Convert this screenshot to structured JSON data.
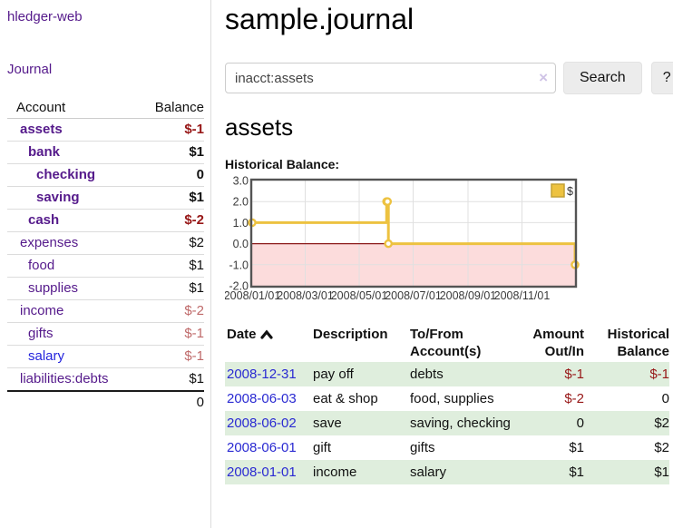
{
  "sidebar": {
    "brand": "hledger-web",
    "journal_link": "Journal",
    "accounts_table": {
      "headers": {
        "account": "Account",
        "balance": "Balance"
      },
      "rows": [
        {
          "name": "assets",
          "balance": "$-1",
          "depth": 1,
          "bold": true,
          "balance_tone": "neg-strong",
          "name_tone": "purple"
        },
        {
          "name": "bank",
          "balance": "$1",
          "depth": 2,
          "bold": true,
          "balance_tone": "normal",
          "name_tone": "purple"
        },
        {
          "name": "checking",
          "balance": "0",
          "depth": 3,
          "bold": true,
          "balance_tone": "normal",
          "name_tone": "purple"
        },
        {
          "name": "saving",
          "balance": "$1",
          "depth": 3,
          "bold": true,
          "balance_tone": "normal",
          "name_tone": "purple"
        },
        {
          "name": "cash",
          "balance": "$-2",
          "depth": 2,
          "bold": true,
          "balance_tone": "neg-strong",
          "name_tone": "purple"
        },
        {
          "name": "expenses",
          "balance": "$2",
          "depth": 1,
          "bold": false,
          "balance_tone": "normal",
          "name_tone": "purple"
        },
        {
          "name": "food",
          "balance": "$1",
          "depth": 2,
          "bold": false,
          "balance_tone": "normal",
          "name_tone": "purple"
        },
        {
          "name": "supplies",
          "balance": "$1",
          "depth": 2,
          "bold": false,
          "balance_tone": "normal",
          "name_tone": "purple"
        },
        {
          "name": "income",
          "balance": "$-2",
          "depth": 1,
          "bold": false,
          "balance_tone": "neg-soft",
          "name_tone": "purple"
        },
        {
          "name": "gifts",
          "balance": "$-1",
          "depth": 2,
          "bold": false,
          "balance_tone": "neg-soft",
          "name_tone": "purple"
        },
        {
          "name": "salary",
          "balance": "$-1",
          "depth": 2,
          "bold": false,
          "balance_tone": "neg-soft",
          "name_tone": "blue"
        },
        {
          "name": "liabilities:debts",
          "balance": "$1",
          "depth": 1,
          "bold": false,
          "balance_tone": "normal",
          "name_tone": "purple"
        }
      ],
      "total": "0"
    }
  },
  "main": {
    "title": "sample.journal",
    "search": {
      "value": "inacct:assets",
      "clear_icon": "×",
      "button_label": "Search",
      "help_label": "?"
    },
    "account_heading": "assets",
    "chart_label": "Historical Balance:"
  },
  "chart_data": {
    "type": "line",
    "title": "Historical Balance:",
    "step": true,
    "legend": "$",
    "legend_position": "top-right",
    "series": [
      {
        "name": "$",
        "points": [
          [
            "2008-01-01",
            1
          ],
          [
            "2008-06-01",
            2
          ],
          [
            "2008-06-02",
            2
          ],
          [
            "2008-06-03",
            0
          ],
          [
            "2008-12-31",
            -1
          ]
        ]
      }
    ],
    "ylim": [
      -2,
      3
    ],
    "yticks": [
      "3.0",
      "2.0",
      "1.0",
      "0.0",
      "-1.0",
      "-2.0"
    ],
    "ytick_values": [
      3,
      2,
      1,
      0,
      -1,
      -2
    ],
    "xticks": [
      "2008/01/01",
      "2008/03/01",
      "2008/05/01",
      "2008/07/01",
      "2008/09/01",
      "2008/11/01"
    ],
    "xtick_days": [
      1,
      61,
      122,
      183,
      245,
      306
    ],
    "grid": true,
    "colors": {
      "line": "#edc240",
      "point_fill": "#ffffff",
      "negative_region": "#fcdcdc",
      "zero_line": "#8b1a1a",
      "plot_border": "#545454",
      "gridline": "#e0e0e0",
      "tick_label": "#3a3a3a",
      "legend_square_border": "#c3a134"
    }
  },
  "register": {
    "headers": [
      "Date",
      "Description",
      "To/From Account(s)",
      "Amount Out/In",
      "Historical Balance"
    ],
    "rows": [
      {
        "date": "2008-12-31",
        "description": "pay off",
        "accounts": "debts",
        "amount": "$-1",
        "balance": "$-1",
        "amount_negative": true,
        "balance_negative": true,
        "stripe": true
      },
      {
        "date": "2008-06-03",
        "description": "eat & shop",
        "accounts": "food, supplies",
        "amount": "$-2",
        "balance": "0",
        "amount_negative": true,
        "balance_negative": false,
        "stripe": false
      },
      {
        "date": "2008-06-02",
        "description": "save",
        "accounts": "saving, checking",
        "amount": "0",
        "balance": "$2",
        "amount_negative": false,
        "balance_negative": false,
        "stripe": true
      },
      {
        "date": "2008-06-01",
        "description": "gift",
        "accounts": "gifts",
        "amount": "$1",
        "balance": "$2",
        "amount_negative": false,
        "balance_negative": false,
        "stripe": false
      },
      {
        "date": "2008-01-01",
        "description": "income",
        "accounts": "salary",
        "amount": "$1",
        "balance": "$1",
        "amount_negative": false,
        "balance_negative": false,
        "stripe": true
      }
    ]
  }
}
